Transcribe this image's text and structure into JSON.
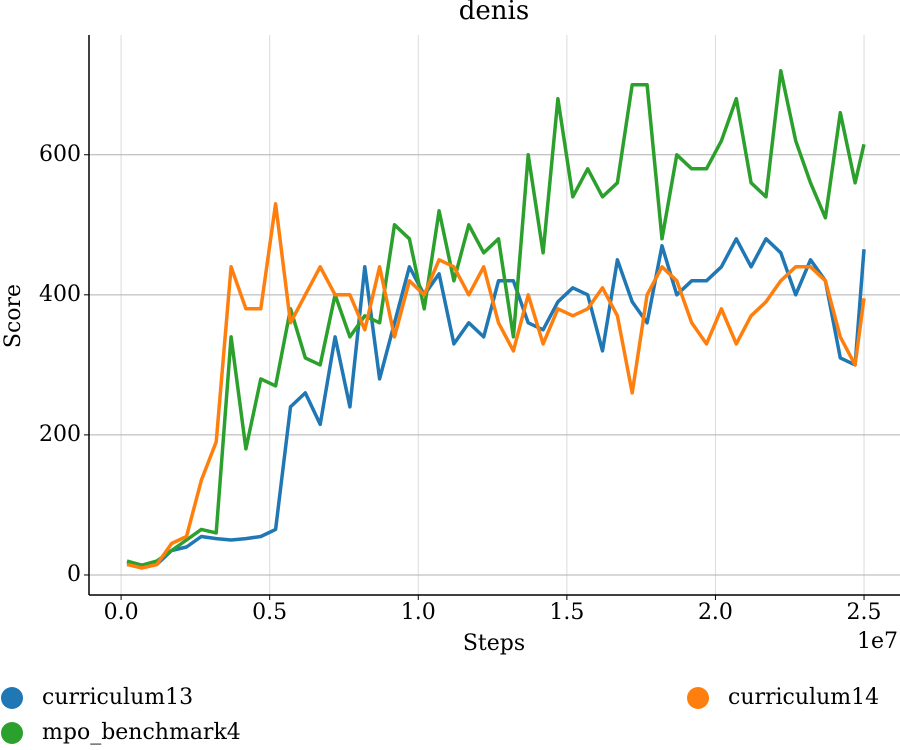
{
  "chart_data": {
    "type": "line",
    "title": "denis",
    "xlabel": "Steps",
    "ylabel": "Score",
    "x_offset_label": "1e7",
    "x": [
      0.02,
      0.07,
      0.12,
      0.17,
      0.22,
      0.27,
      0.32,
      0.37,
      0.42,
      0.47,
      0.52,
      0.57,
      0.62,
      0.67,
      0.72,
      0.77,
      0.82,
      0.87,
      0.92,
      0.97,
      1.02,
      1.07,
      1.12,
      1.17,
      1.22,
      1.27,
      1.32,
      1.37,
      1.42,
      1.47,
      1.52,
      1.57,
      1.62,
      1.67,
      1.72,
      1.77,
      1.82,
      1.87,
      1.92,
      1.97,
      2.02,
      2.07,
      2.12,
      2.17,
      2.22,
      2.27,
      2.32,
      2.37,
      2.42,
      2.47,
      2.5
    ],
    "series": [
      {
        "name": "curriculum13",
        "color": "#1f77b4",
        "values": [
          18,
          14,
          15,
          35,
          40,
          55,
          52,
          50,
          52,
          55,
          65,
          240,
          260,
          215,
          340,
          240,
          440,
          280,
          360,
          440,
          400,
          430,
          330,
          360,
          340,
          420,
          420,
          360,
          350,
          390,
          410,
          400,
          320,
          450,
          390,
          360,
          470,
          400,
          420,
          420,
          440,
          480,
          440,
          480,
          460,
          400,
          450,
          420,
          310,
          300,
          465
        ]
      },
      {
        "name": "mpo_benchmark4",
        "color": "#2ca02c",
        "values": [
          20,
          14,
          20,
          35,
          50,
          65,
          60,
          340,
          180,
          280,
          270,
          380,
          310,
          300,
          400,
          340,
          370,
          360,
          500,
          480,
          380,
          520,
          420,
          500,
          460,
          480,
          340,
          600,
          460,
          680,
          540,
          580,
          540,
          560,
          700,
          700,
          480,
          600,
          580,
          580,
          620,
          680,
          560,
          540,
          720,
          620,
          560,
          510,
          660,
          560,
          615
        ]
      },
      {
        "name": "curriculum14",
        "color": "#ff7f0e",
        "values": [
          15,
          10,
          15,
          45,
          55,
          135,
          190,
          440,
          380,
          380,
          530,
          360,
          400,
          440,
          400,
          400,
          350,
          440,
          340,
          420,
          400,
          450,
          440,
          400,
          440,
          360,
          320,
          400,
          330,
          380,
          370,
          380,
          410,
          370,
          260,
          400,
          440,
          420,
          360,
          330,
          380,
          330,
          370,
          390,
          420,
          440,
          440,
          420,
          340,
          300,
          395
        ]
      }
    ],
    "xlim": [
      -0.108,
      2.621
    ],
    "ylim": [
      -28.6,
      771
    ],
    "xticks": [
      {
        "value": 0,
        "label": "0.0"
      },
      0.5,
      {
        "value": 1,
        "label": "1.0"
      },
      1.5,
      {
        "value": 2,
        "label": "2.0"
      },
      2.5
    ],
    "yticks": [
      0,
      200,
      400,
      600
    ],
    "grid": true,
    "legend": "bottom"
  }
}
